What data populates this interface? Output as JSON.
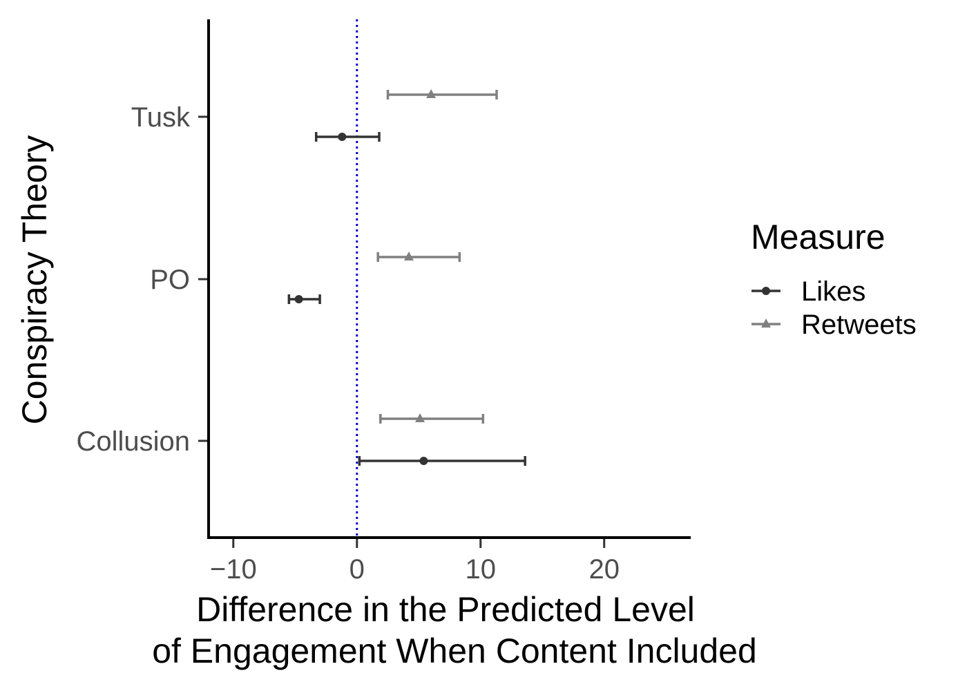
{
  "chart_data": {
    "type": "scatter",
    "title": "",
    "xlabel_lines": [
      "Difference in the Predicted Level",
      "of Engagement When Content Included"
    ],
    "ylabel": "Conspiracy Theory",
    "xlim": [
      -12,
      27
    ],
    "xticks": [
      -10,
      0,
      10,
      20
    ],
    "xtick_labels": [
      "−10",
      "0",
      "10",
      "20"
    ],
    "categories": [
      "Tusk",
      "PO",
      "Collusion"
    ],
    "reference_line": {
      "x": 0,
      "style": "dotted",
      "color": "#0000cc"
    },
    "grid": false,
    "legend": {
      "title": "Measure",
      "placement": "right"
    },
    "series": [
      {
        "name": "Likes",
        "marker": "circle",
        "color": "#333333",
        "points": [
          {
            "category": "Tusk",
            "estimate": -1.2,
            "lower": -3.3,
            "upper": 1.8
          },
          {
            "category": "PO",
            "estimate": -4.7,
            "lower": -5.5,
            "upper": -3.0
          },
          {
            "category": "Collusion",
            "estimate": 5.4,
            "lower": 0.2,
            "upper": 13.6
          }
        ]
      },
      {
        "name": "Retweets",
        "marker": "triangle",
        "color": "#808080",
        "points": [
          {
            "category": "Tusk",
            "estimate": 6.0,
            "lower": 2.5,
            "upper": 11.3
          },
          {
            "category": "PO",
            "estimate": 4.2,
            "lower": 1.7,
            "upper": 8.3
          },
          {
            "category": "Collusion",
            "estimate": 5.1,
            "lower": 1.9,
            "upper": 10.2
          }
        ]
      }
    ]
  }
}
